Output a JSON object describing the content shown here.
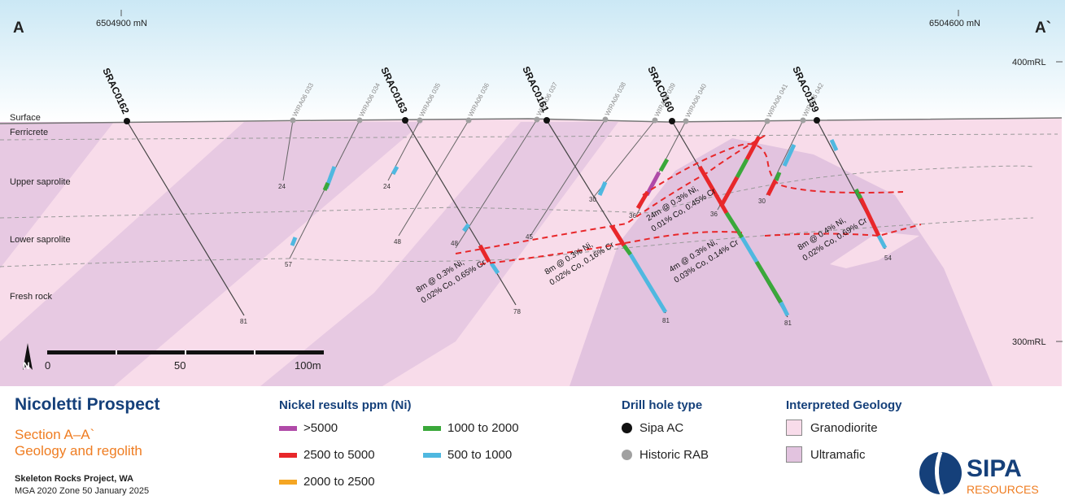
{
  "section": {
    "left_label": "A",
    "right_label": "A`",
    "northing_left": "6504900 mN",
    "northing_right": "6504600 mN",
    "rl_top": "400mRL",
    "rl_bottom": "300mRL",
    "layers": [
      "Surface",
      "Ferricrete",
      "Upper saprolite",
      "Lower saprolite",
      "Fresh rock"
    ],
    "sipa_holes": [
      "SRAC0162",
      "SRAC0163",
      "SRAC0161",
      "SRAC0160",
      "SRAC0159"
    ],
    "historic_holes": [
      "WIRA06 033",
      "WIRA06 034",
      "WIRA06 035",
      "WIRA06 036",
      "WIRA06 037",
      "WIRA06 038",
      "WIRA06 039",
      "WIRA06 040",
      "WIRA06 041",
      "WIRA06 042"
    ],
    "depths": {
      "srac0162": "81",
      "srac0163": "78",
      "srac0161": "81",
      "srac0160": "81",
      "srac0159": "54",
      "w033": "24",
      "w034": "57",
      "w035": "24",
      "w036": "48",
      "w037": "48",
      "w038": "45",
      "w039": "30",
      "w040": "36",
      "w041": "36",
      "w042": "30"
    },
    "intercepts": [
      {
        "line1": "8m @ 0.3% Ni,",
        "line2": "0.02% Co, 0.65% Cr"
      },
      {
        "line1": "8m @ 0.3% Ni,",
        "line2": "0.02% Co, 0.16% Cr"
      },
      {
        "line1": "24m @ 0.3% Ni,",
        "line2": "0.01% Co, 0.45% Cr"
      },
      {
        "line1": "4m @ 0.3% Ni,",
        "line2": "0.03% Co, 0.14% Cr"
      },
      {
        "line1": "8m @ 0.4% Ni,",
        "line2": "0.02% Co, 0.69% Cr"
      }
    ],
    "scale": {
      "north": "N",
      "ticks": [
        "0",
        "50",
        "100m"
      ]
    }
  },
  "title": {
    "main": "Nicoletti Prospect",
    "section_line": "Section A–A`",
    "subject": "Geology and regolith",
    "project": "Skeleton Rocks Project, WA",
    "datum": "MGA 2020 Zone 50  January 2025"
  },
  "legend": {
    "nickel": {
      "heading": "Nickel results ppm (Ni)",
      "items": [
        {
          "label": ">5000",
          "color": "#b04aa8"
        },
        {
          "label": "2500 to 5000",
          "color": "#e8272a"
        },
        {
          "label": "2000 to 2500",
          "color": "#f5a623"
        },
        {
          "label": "1000 to 2000",
          "color": "#3aa83a"
        },
        {
          "label": "500 to 1000",
          "color": "#4fb8e0"
        }
      ]
    },
    "hole_type": {
      "heading": "Drill hole type",
      "items": [
        {
          "label": "Sipa AC",
          "color": "#111111"
        },
        {
          "label": "Historic RAB",
          "color": "#a0a0a0"
        }
      ]
    },
    "geology": {
      "heading": "Interpreted Geology",
      "items": [
        {
          "label": "Granodiorite",
          "color": "#f8dcea"
        },
        {
          "label": "Ultramafic",
          "color": "#e2c3df"
        }
      ]
    }
  },
  "logo": {
    "name": "SIPA",
    "sub": "RESOURCES"
  }
}
